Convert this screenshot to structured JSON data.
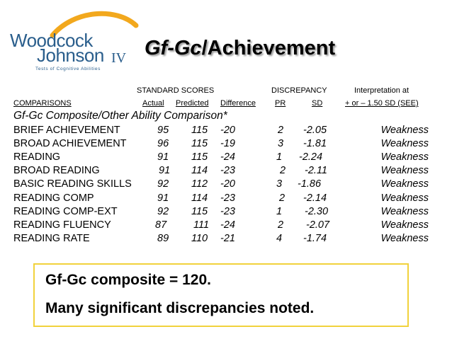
{
  "logo": {
    "line1": "Woodcock",
    "line2": "Johnson",
    "edition": "IV",
    "tagline": "Tests of Cognitive Abilities",
    "color": "#2a5e8c",
    "arc_color": "#f2a81d"
  },
  "title": {
    "part1": "Gf-Gc",
    "part2": "/Achievement"
  },
  "headers": {
    "standard_scores": "STANDARD SCORES",
    "discrepancy": "DISCREPANCY",
    "interpretation": "Interpretation at",
    "comparisons": "COMPARISONS",
    "actual": "Actual",
    "predicted": "Predicted",
    "difference": "Difference",
    "pr": "PR",
    "sd": "SD",
    "criterion": "+ or – 1.50 SD (SEE)"
  },
  "section_title": "Gf-Gc Composite/Other Ability Comparison*",
  "rows": [
    {
      "label": "BRIEF ACHIEVEMENT",
      "actual": "95",
      "predicted": "115",
      "difference": "-20",
      "pr": "2",
      "sd": "-2.05",
      "interp": "Weakness"
    },
    {
      "label": "BROAD ACHIEVEMENT",
      "actual": "96",
      "predicted": "115",
      "difference": "-19",
      "pr": "3",
      "sd": "-1.81",
      "interp": "Weakness"
    },
    {
      "label": "READING",
      "actual": "91",
      "predicted": "115",
      "difference": "-24",
      "pr": "1",
      "sd": "-2.24",
      "interp": "Weakness"
    },
    {
      "label": "BROAD READING",
      "actual": "91",
      "predicted": "114",
      "difference": "-23",
      "pr": "2",
      "sd": "-2.11",
      "interp": "Weakness"
    },
    {
      "label": "BASIC READING SKILLS",
      "actual": "92",
      "predicted": "112",
      "difference": "-20",
      "pr": "3",
      "sd": "-1.86",
      "interp": "Weakness"
    },
    {
      "label": "READING COMP",
      "actual": "91",
      "predicted": "114",
      "difference": "-23",
      "pr": "2",
      "sd": "-2.14",
      "interp": "Weakness"
    },
    {
      "label": "READING COMP-EXT",
      "actual": "92",
      "predicted": "115",
      "difference": "-23",
      "pr": "1",
      "sd": "-2.30",
      "interp": "Weakness"
    },
    {
      "label": "READING FLUENCY",
      "actual": "87",
      "predicted": "111",
      "difference": "-24",
      "pr": "2",
      "sd": "-2.07",
      "interp": "Weakness"
    },
    {
      "label": "READING RATE",
      "actual": "89",
      "predicted": "110",
      "difference": "-21",
      "pr": "4",
      "sd": "-1.74",
      "interp": "Weakness"
    }
  ],
  "note": {
    "line1": "Gf-Gc composite = 120.",
    "line2": "Many significant discrepancies noted.",
    "border_color": "#f1d23c"
  }
}
